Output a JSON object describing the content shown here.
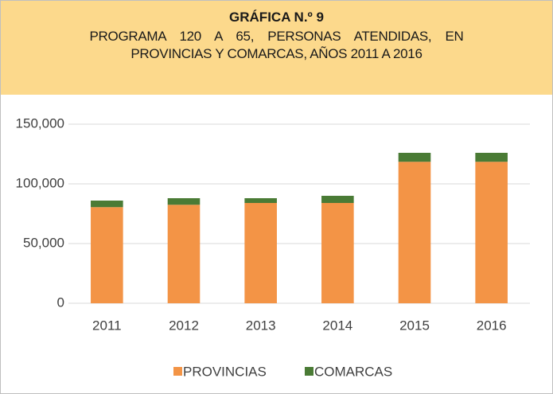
{
  "chart_data": {
    "type": "bar",
    "stacked": true,
    "title": "GRÁFICA N.º 9",
    "subtitle": "PROGRAMA 120 A 65, PERSONAS ATENDIDAS, EN PROVINCIAS Y COMARCAS, AÑOS 2011 A 2016",
    "categories": [
      "2011",
      "2012",
      "2013",
      "2014",
      "2015",
      "2016"
    ],
    "series": [
      {
        "name": "PROVINCIAS",
        "color": "#f39446",
        "values": [
          80500,
          82500,
          84000,
          84000,
          118500,
          118500
        ]
      },
      {
        "name": "COMARCAS",
        "color": "#4a7b35",
        "values": [
          5500,
          5500,
          4000,
          6000,
          7500,
          7500
        ]
      }
    ],
    "ylim": [
      0,
      150000
    ],
    "yticks": [
      0,
      {
        "value": 50000,
        "label": "50,000"
      },
      {
        "value": 100000,
        "label": "100,000"
      },
      {
        "value": 150000,
        "label": "150,000"
      }
    ],
    "grid": true,
    "legend": "bottom"
  }
}
